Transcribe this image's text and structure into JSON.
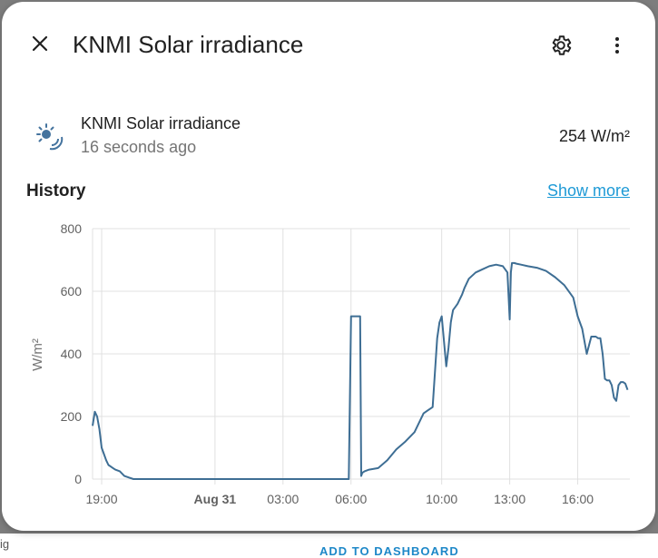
{
  "dialog": {
    "title": "KNMI Solar irradiance",
    "close_icon": "close-icon",
    "settings_icon": "gear-icon",
    "more_icon": "more-vertical-icon"
  },
  "entity": {
    "icon": "sun-wireless-icon",
    "name": "KNMI Solar irradiance",
    "last_changed": "16 seconds ago",
    "state": "254 W/m²"
  },
  "history": {
    "label": "History",
    "show_more": "Show more"
  },
  "backdrop": {
    "partial_button": "ADD TO DASHBOARD"
  },
  "colors": {
    "line": "#3e6e94",
    "link": "#1e9ad6",
    "grid": "#e0e0e0",
    "axis_text": "#616161"
  },
  "chart_data": {
    "type": "line",
    "title": "",
    "xlabel": "",
    "ylabel": "W/m²",
    "ylim": [
      0,
      800
    ],
    "y_ticks": [
      "800",
      "600",
      "400",
      "200",
      "0"
    ],
    "x_ticks": [
      "19:00",
      "Aug 31",
      "03:00",
      "06:00",
      "10:00",
      "13:00",
      "16:00"
    ],
    "x_hours": [
      0,
      5,
      8,
      11,
      15,
      18,
      21
    ],
    "xlim_hours": [
      -0.4,
      23.3
    ],
    "series": [
      {
        "name": "KNMI Solar irradiance",
        "hours": [
          -0.4,
          -0.3,
          -0.2,
          -0.1,
          0.0,
          0.1,
          0.2,
          0.3,
          0.4,
          0.5,
          0.6,
          0.8,
          1.0,
          1.2,
          1.4,
          1.7,
          2.0,
          10.9,
          11.0,
          11.1,
          11.4,
          11.45,
          11.5,
          11.6,
          11.8,
          12.2,
          12.6,
          13.0,
          13.4,
          13.8,
          14.2,
          14.4,
          14.6,
          14.8,
          14.9,
          15.0,
          15.2,
          15.3,
          15.4,
          15.45,
          15.5,
          15.6,
          15.7,
          15.8,
          15.9,
          16.0,
          16.2,
          16.5,
          16.8,
          17.1,
          17.4,
          17.7,
          17.9,
          18.0,
          18.05,
          18.1,
          18.2,
          18.3,
          18.5,
          18.8,
          19.2,
          19.6,
          20.0,
          20.4,
          20.8,
          21.0,
          21.2,
          21.4,
          21.6,
          21.7,
          21.8,
          21.9,
          22.0,
          22.1,
          22.2,
          22.3,
          22.4,
          22.5,
          22.6,
          22.7,
          22.8,
          22.9,
          23.0,
          23.1,
          23.2
        ],
        "values": [
          170,
          215,
          200,
          160,
          100,
          80,
          60,
          45,
          40,
          35,
          30,
          25,
          10,
          5,
          0,
          0,
          0,
          0,
          520,
          520,
          520,
          10,
          20,
          25,
          30,
          35,
          60,
          95,
          120,
          150,
          210,
          220,
          230,
          450,
          500,
          520,
          360,
          420,
          500,
          520,
          540,
          550,
          560,
          575,
          590,
          610,
          640,
          660,
          670,
          680,
          685,
          680,
          660,
          510,
          660,
          690,
          690,
          688,
          685,
          680,
          675,
          665,
          645,
          620,
          580,
          520,
          480,
          400,
          455,
          455,
          455,
          450,
          450,
          400,
          320,
          315,
          315,
          300,
          260,
          250,
          300,
          310,
          310,
          305,
          285
        ]
      }
    ]
  }
}
